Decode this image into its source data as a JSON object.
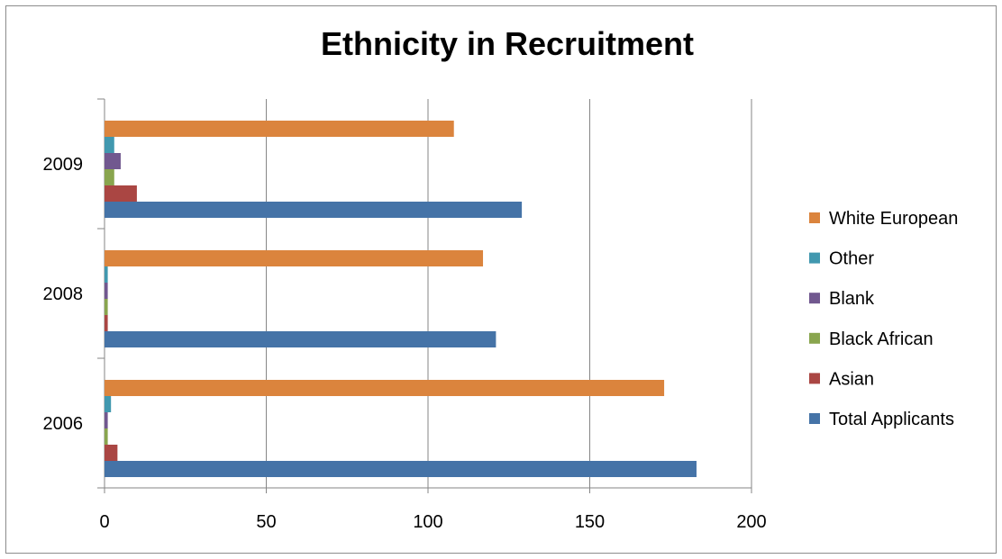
{
  "chart_data": {
    "type": "bar",
    "orientation": "horizontal",
    "title": "Ethnicity in Recruitment",
    "xlabel": "",
    "ylabel": "",
    "categories": [
      "2006",
      "2008",
      "2009"
    ],
    "xlim": [
      0,
      200
    ],
    "xticks": [
      "0",
      "50",
      "100",
      "150",
      "200"
    ],
    "grid": "vertical major gridlines",
    "legend_position": "right",
    "series": [
      {
        "name": "Total Applicants",
        "color": "#4573a7",
        "values": [
          183,
          121,
          129
        ]
      },
      {
        "name": "Asian",
        "color": "#aa4643",
        "values": [
          4,
          1,
          10
        ]
      },
      {
        "name": "Black African",
        "color": "#89a54e",
        "values": [
          1,
          1,
          3
        ]
      },
      {
        "name": "Blank",
        "color": "#71588f",
        "values": [
          1,
          1,
          5
        ]
      },
      {
        "name": "Other",
        "color": "#4198af",
        "values": [
          2,
          1,
          3
        ]
      },
      {
        "name": "White European",
        "color": "#db843d",
        "values": [
          173,
          117,
          108
        ]
      }
    ]
  }
}
